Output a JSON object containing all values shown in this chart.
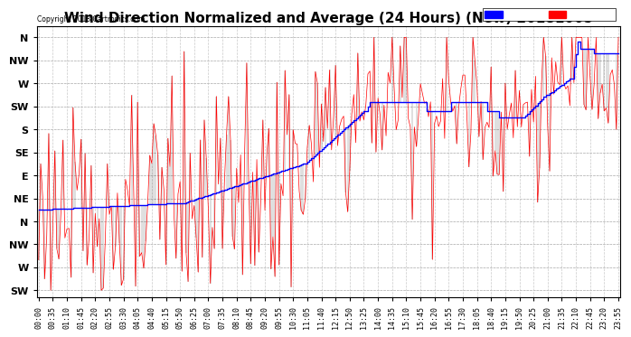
{
  "title": "Wind Direction Normalized and Average (24 Hours) (New) 20181005",
  "copyright": "Copyright 2018 Cartronics.com",
  "yticks_labels": [
    "N",
    "NW",
    "W",
    "SW",
    "S",
    "SE",
    "E",
    "NE",
    "N",
    "NW",
    "W",
    "SW"
  ],
  "yticks_values": [
    11,
    10,
    9,
    8,
    7,
    6,
    5,
    4,
    3,
    2,
    1,
    0
  ],
  "ylim": [
    -0.3,
    11.5
  ],
  "background_color": "#ffffff",
  "grid_color": "#bbbbbb",
  "title_fontsize": 11,
  "axis_label_fontsize": 6,
  "avg_color": "#0000ff",
  "dir_color": "#ff0000",
  "black_color": "#000000"
}
